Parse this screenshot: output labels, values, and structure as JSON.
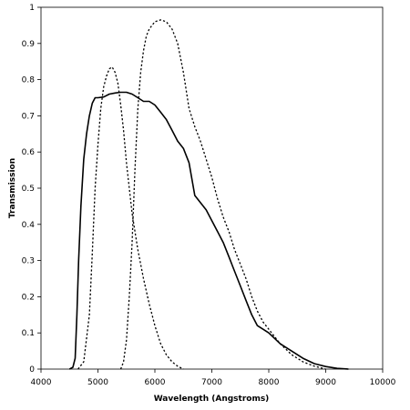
{
  "chart_data": {
    "type": "line",
    "title": "",
    "xlabel": "Wavelength (Angstroms)",
    "ylabel": "Transmission",
    "xlim": [
      4000,
      10000
    ],
    "ylim": [
      0,
      1
    ],
    "xticks": [
      4000,
      5000,
      6000,
      7000,
      8000,
      9000,
      10000
    ],
    "yticks": [
      0,
      0.1,
      0.2,
      0.3,
      0.4,
      0.5,
      0.6,
      0.7,
      0.8,
      0.9,
      1
    ],
    "ytick_labels": [
      "0",
      "0.1",
      "0.2",
      "0.3",
      "0.4",
      "0.5",
      "0.6",
      "0.7",
      "0.8",
      "0.9",
      "1"
    ],
    "grid": false,
    "legend": "none",
    "series": [
      {
        "style": "solid",
        "color": "#000000",
        "points": [
          [
            4500,
            0
          ],
          [
            4560,
            0.005
          ],
          [
            4600,
            0.03
          ],
          [
            4630,
            0.15
          ],
          [
            4660,
            0.3
          ],
          [
            4700,
            0.45
          ],
          [
            4750,
            0.58
          ],
          [
            4800,
            0.65
          ],
          [
            4850,
            0.7
          ],
          [
            4900,
            0.735
          ],
          [
            4950,
            0.75
          ],
          [
            5000,
            0.75
          ],
          [
            5100,
            0.752
          ],
          [
            5200,
            0.76
          ],
          [
            5300,
            0.763
          ],
          [
            5400,
            0.765
          ],
          [
            5500,
            0.765
          ],
          [
            5600,
            0.76
          ],
          [
            5700,
            0.75
          ],
          [
            5800,
            0.74
          ],
          [
            5900,
            0.74
          ],
          [
            6000,
            0.73
          ],
          [
            6100,
            0.71
          ],
          [
            6200,
            0.69
          ],
          [
            6300,
            0.66
          ],
          [
            6400,
            0.63
          ],
          [
            6500,
            0.61
          ],
          [
            6600,
            0.57
          ],
          [
            6700,
            0.48
          ],
          [
            6800,
            0.46
          ],
          [
            6900,
            0.44
          ],
          [
            7000,
            0.41
          ],
          [
            7100,
            0.38
          ],
          [
            7200,
            0.35
          ],
          [
            7300,
            0.31
          ],
          [
            7400,
            0.27
          ],
          [
            7500,
            0.23
          ],
          [
            7600,
            0.19
          ],
          [
            7700,
            0.15
          ],
          [
            7800,
            0.12
          ],
          [
            7900,
            0.11
          ],
          [
            8000,
            0.1
          ],
          [
            8100,
            0.085
          ],
          [
            8200,
            0.07
          ],
          [
            8400,
            0.05
          ],
          [
            8600,
            0.03
          ],
          [
            8800,
            0.015
          ],
          [
            9000,
            0.007
          ],
          [
            9200,
            0.002
          ],
          [
            9400,
            0
          ]
        ]
      },
      {
        "style": "dotted",
        "color": "#000000",
        "points": [
          [
            4650,
            0
          ],
          [
            4750,
            0.02
          ],
          [
            4850,
            0.15
          ],
          [
            4900,
            0.32
          ],
          [
            4950,
            0.5
          ],
          [
            5000,
            0.62
          ],
          [
            5050,
            0.72
          ],
          [
            5100,
            0.78
          ],
          [
            5150,
            0.81
          ],
          [
            5200,
            0.83
          ],
          [
            5250,
            0.835
          ],
          [
            5300,
            0.82
          ],
          [
            5350,
            0.79
          ],
          [
            5400,
            0.73
          ],
          [
            5450,
            0.66
          ],
          [
            5500,
            0.57
          ],
          [
            5600,
            0.43
          ],
          [
            5700,
            0.33
          ],
          [
            5800,
            0.25
          ],
          [
            5900,
            0.18
          ],
          [
            6000,
            0.12
          ],
          [
            6100,
            0.07
          ],
          [
            6200,
            0.04
          ],
          [
            6300,
            0.02
          ],
          [
            6400,
            0.008
          ],
          [
            6500,
            0
          ]
        ]
      },
      {
        "style": "dotted",
        "color": "#000000",
        "points": [
          [
            5400,
            0
          ],
          [
            5450,
            0.02
          ],
          [
            5500,
            0.08
          ],
          [
            5550,
            0.2
          ],
          [
            5600,
            0.35
          ],
          [
            5650,
            0.55
          ],
          [
            5700,
            0.72
          ],
          [
            5750,
            0.82
          ],
          [
            5800,
            0.88
          ],
          [
            5850,
            0.92
          ],
          [
            5900,
            0.94
          ],
          [
            5950,
            0.95
          ],
          [
            6000,
            0.96
          ],
          [
            6100,
            0.965
          ],
          [
            6200,
            0.96
          ],
          [
            6300,
            0.94
          ],
          [
            6400,
            0.9
          ],
          [
            6500,
            0.82
          ],
          [
            6600,
            0.72
          ],
          [
            6700,
            0.67
          ],
          [
            6800,
            0.63
          ],
          [
            6900,
            0.58
          ],
          [
            7000,
            0.53
          ],
          [
            7100,
            0.47
          ],
          [
            7200,
            0.42
          ],
          [
            7300,
            0.38
          ],
          [
            7400,
            0.33
          ],
          [
            7500,
            0.29
          ],
          [
            7600,
            0.25
          ],
          [
            7700,
            0.2
          ],
          [
            7800,
            0.16
          ],
          [
            7900,
            0.13
          ],
          [
            8000,
            0.11
          ],
          [
            8100,
            0.09
          ],
          [
            8200,
            0.07
          ],
          [
            8400,
            0.04
          ],
          [
            8600,
            0.02
          ],
          [
            8800,
            0.008
          ],
          [
            9000,
            0
          ]
        ]
      }
    ]
  }
}
